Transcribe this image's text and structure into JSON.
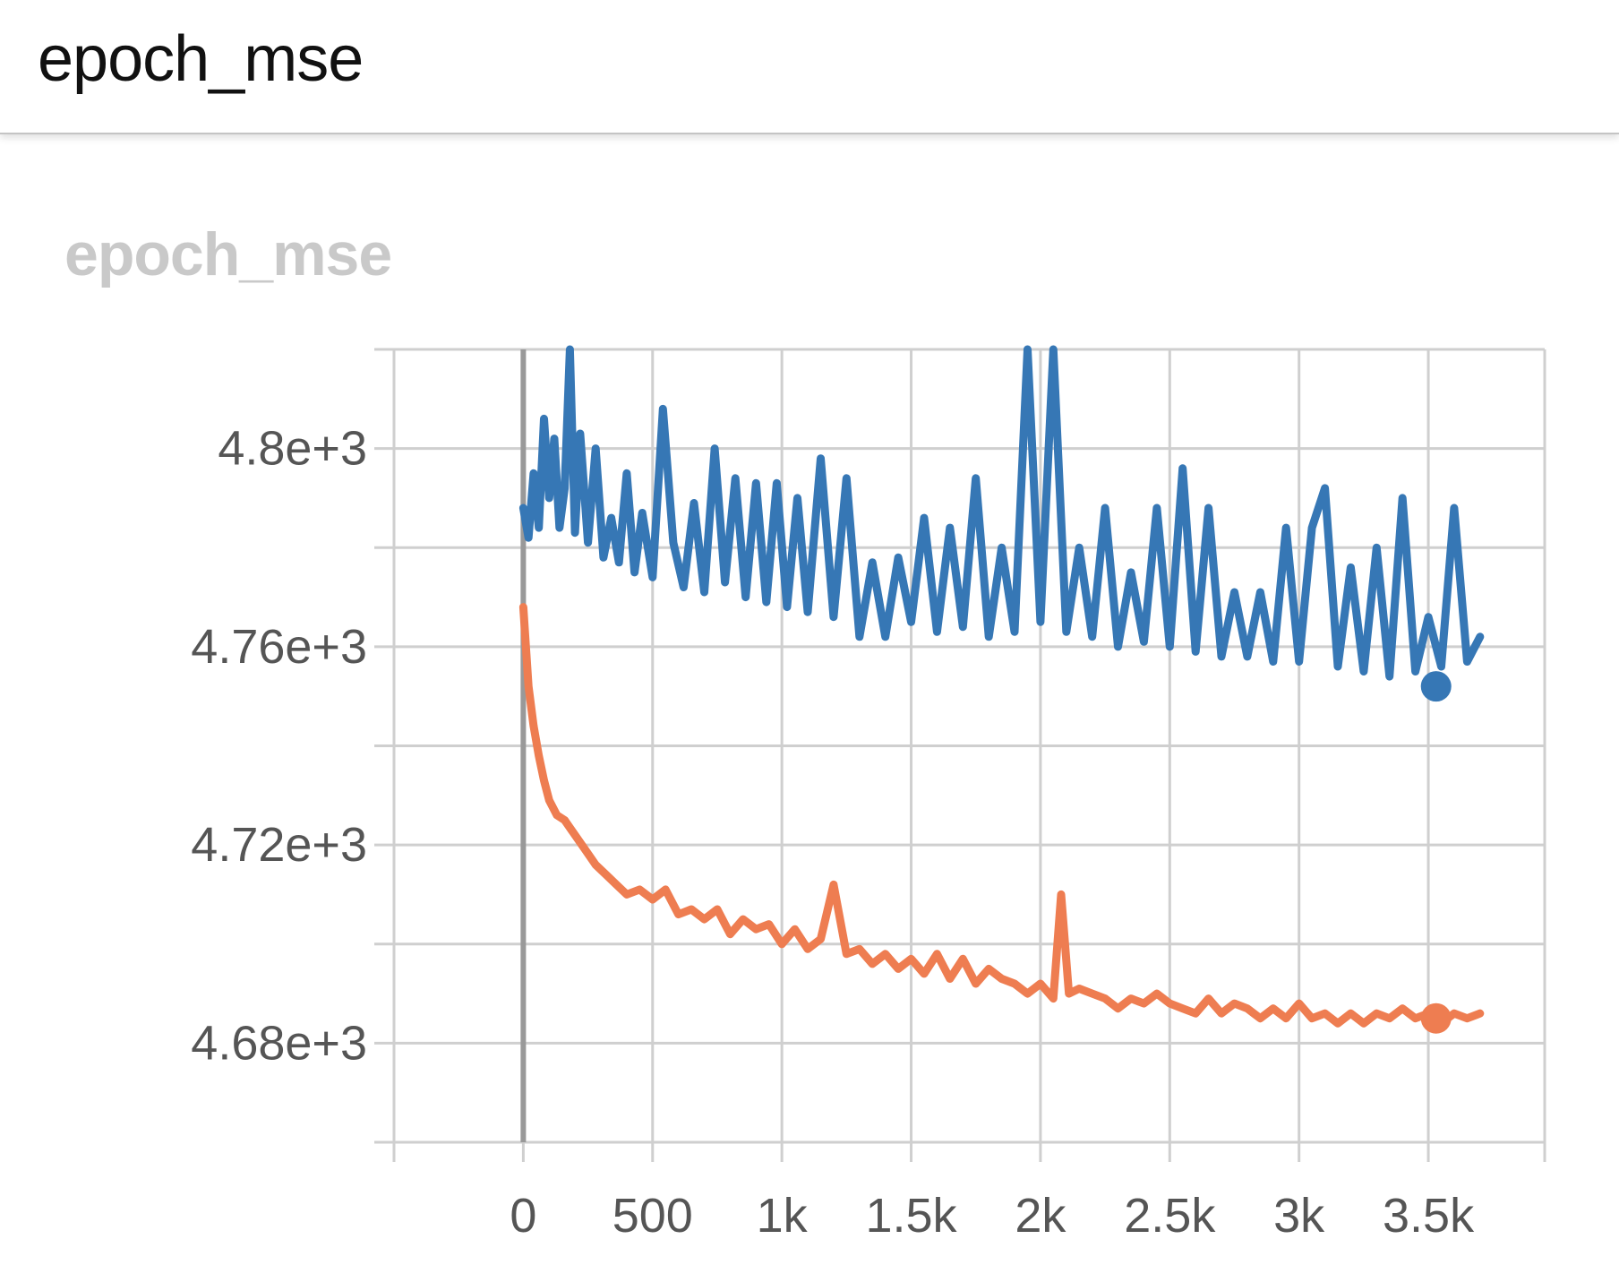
{
  "header": {
    "title": "epoch_mse"
  },
  "card": {
    "title": "epoch_mse"
  },
  "chart_data": {
    "type": "line",
    "title": "epoch_mse",
    "xlabel": "",
    "ylabel": "",
    "xlim": [
      -500,
      3950
    ],
    "ylim": [
      4660,
      4820
    ],
    "x_ticks": [
      0,
      500,
      1000,
      1500,
      2000,
      2500,
      3000,
      3500
    ],
    "x_tick_labels": [
      "0",
      "500",
      "1k",
      "1.5k",
      "2k",
      "2.5k",
      "3k",
      "3.5k"
    ],
    "y_ticks": [
      4800,
      4760,
      4720,
      4680
    ],
    "y_tick_labels": [
      "4.8e+3",
      "4.76e+3",
      "4.72e+3",
      "4.68e+3"
    ],
    "y_minor_ticks": [
      4820,
      4780,
      4740,
      4700,
      4660
    ],
    "grid": true,
    "legend": "none",
    "series": [
      {
        "color": "#3677b5",
        "marker_x": 3530,
        "marker_y": 4752,
        "points": [
          [
            0,
            4788
          ],
          [
            20,
            4782
          ],
          [
            40,
            4795
          ],
          [
            60,
            4784
          ],
          [
            80,
            4806
          ],
          [
            100,
            4790
          ],
          [
            120,
            4802
          ],
          [
            140,
            4784
          ],
          [
            160,
            4792
          ],
          [
            180,
            4820
          ],
          [
            200,
            4783
          ],
          [
            220,
            4803
          ],
          [
            250,
            4781
          ],
          [
            280,
            4800
          ],
          [
            310,
            4778
          ],
          [
            340,
            4786
          ],
          [
            370,
            4777
          ],
          [
            400,
            4795
          ],
          [
            430,
            4775
          ],
          [
            460,
            4787
          ],
          [
            500,
            4774
          ],
          [
            540,
            4808
          ],
          [
            580,
            4781
          ],
          [
            620,
            4772
          ],
          [
            660,
            4789
          ],
          [
            700,
            4771
          ],
          [
            740,
            4800
          ],
          [
            780,
            4773
          ],
          [
            820,
            4794
          ],
          [
            860,
            4770
          ],
          [
            900,
            4793
          ],
          [
            940,
            4769
          ],
          [
            980,
            4793
          ],
          [
            1020,
            4768
          ],
          [
            1060,
            4790
          ],
          [
            1100,
            4767
          ],
          [
            1150,
            4798
          ],
          [
            1200,
            4766
          ],
          [
            1250,
            4794
          ],
          [
            1300,
            4762
          ],
          [
            1350,
            4777
          ],
          [
            1400,
            4762
          ],
          [
            1450,
            4778
          ],
          [
            1500,
            4765
          ],
          [
            1550,
            4786
          ],
          [
            1600,
            4763
          ],
          [
            1650,
            4784
          ],
          [
            1700,
            4764
          ],
          [
            1750,
            4794
          ],
          [
            1800,
            4762
          ],
          [
            1850,
            4780
          ],
          [
            1900,
            4763
          ],
          [
            1950,
            4820
          ],
          [
            2000,
            4765
          ],
          [
            2050,
            4820
          ],
          [
            2100,
            4763
          ],
          [
            2150,
            4780
          ],
          [
            2200,
            4762
          ],
          [
            2250,
            4788
          ],
          [
            2300,
            4760
          ],
          [
            2350,
            4775
          ],
          [
            2400,
            4761
          ],
          [
            2450,
            4788
          ],
          [
            2500,
            4760
          ],
          [
            2550,
            4796
          ],
          [
            2600,
            4759
          ],
          [
            2650,
            4788
          ],
          [
            2700,
            4758
          ],
          [
            2750,
            4771
          ],
          [
            2800,
            4758
          ],
          [
            2850,
            4771
          ],
          [
            2900,
            4757
          ],
          [
            2950,
            4784
          ],
          [
            3000,
            4757
          ],
          [
            3050,
            4784
          ],
          [
            3100,
            4792
          ],
          [
            3150,
            4756
          ],
          [
            3200,
            4776
          ],
          [
            3250,
            4755
          ],
          [
            3300,
            4780
          ],
          [
            3350,
            4754
          ],
          [
            3400,
            4790
          ],
          [
            3450,
            4755
          ],
          [
            3500,
            4766
          ],
          [
            3550,
            4756
          ],
          [
            3600,
            4788
          ],
          [
            3650,
            4757
          ],
          [
            3700,
            4762
          ]
        ]
      },
      {
        "color": "#ee7d51",
        "marker_x": 3530,
        "marker_y": 4685,
        "points": [
          [
            0,
            4768
          ],
          [
            20,
            4752
          ],
          [
            40,
            4744
          ],
          [
            60,
            4738
          ],
          [
            80,
            4733
          ],
          [
            100,
            4729
          ],
          [
            130,
            4726
          ],
          [
            160,
            4725
          ],
          [
            200,
            4722
          ],
          [
            240,
            4719
          ],
          [
            280,
            4716
          ],
          [
            320,
            4714
          ],
          [
            360,
            4712
          ],
          [
            400,
            4710
          ],
          [
            450,
            4711
          ],
          [
            500,
            4709
          ],
          [
            550,
            4711
          ],
          [
            600,
            4706
          ],
          [
            650,
            4707
          ],
          [
            700,
            4705
          ],
          [
            750,
            4707
          ],
          [
            800,
            4702
          ],
          [
            850,
            4705
          ],
          [
            900,
            4703
          ],
          [
            950,
            4704
          ],
          [
            1000,
            4700
          ],
          [
            1050,
            4703
          ],
          [
            1100,
            4699
          ],
          [
            1150,
            4701
          ],
          [
            1200,
            4712
          ],
          [
            1250,
            4698
          ],
          [
            1300,
            4699
          ],
          [
            1350,
            4696
          ],
          [
            1400,
            4698
          ],
          [
            1450,
            4695
          ],
          [
            1500,
            4697
          ],
          [
            1550,
            4694
          ],
          [
            1600,
            4698
          ],
          [
            1650,
            4693
          ],
          [
            1700,
            4697
          ],
          [
            1750,
            4692
          ],
          [
            1800,
            4695
          ],
          [
            1850,
            4693
          ],
          [
            1900,
            4692
          ],
          [
            1950,
            4690
          ],
          [
            2000,
            4692
          ],
          [
            2050,
            4689
          ],
          [
            2080,
            4710
          ],
          [
            2110,
            4690
          ],
          [
            2150,
            4691
          ],
          [
            2200,
            4690
          ],
          [
            2250,
            4689
          ],
          [
            2300,
            4687
          ],
          [
            2350,
            4689
          ],
          [
            2400,
            4688
          ],
          [
            2450,
            4690
          ],
          [
            2500,
            4688
          ],
          [
            2550,
            4687
          ],
          [
            2600,
            4686
          ],
          [
            2650,
            4689
          ],
          [
            2700,
            4686
          ],
          [
            2750,
            4688
          ],
          [
            2800,
            4687
          ],
          [
            2850,
            4685
          ],
          [
            2900,
            4687
          ],
          [
            2950,
            4685
          ],
          [
            3000,
            4688
          ],
          [
            3050,
            4685
          ],
          [
            3100,
            4686
          ],
          [
            3150,
            4684
          ],
          [
            3200,
            4686
          ],
          [
            3250,
            4684
          ],
          [
            3300,
            4686
          ],
          [
            3350,
            4685
          ],
          [
            3400,
            4687
          ],
          [
            3450,
            4685
          ],
          [
            3500,
            4686
          ],
          [
            3550,
            4684
          ],
          [
            3600,
            4686
          ],
          [
            3650,
            4685
          ],
          [
            3700,
            4686
          ]
        ]
      }
    ]
  }
}
